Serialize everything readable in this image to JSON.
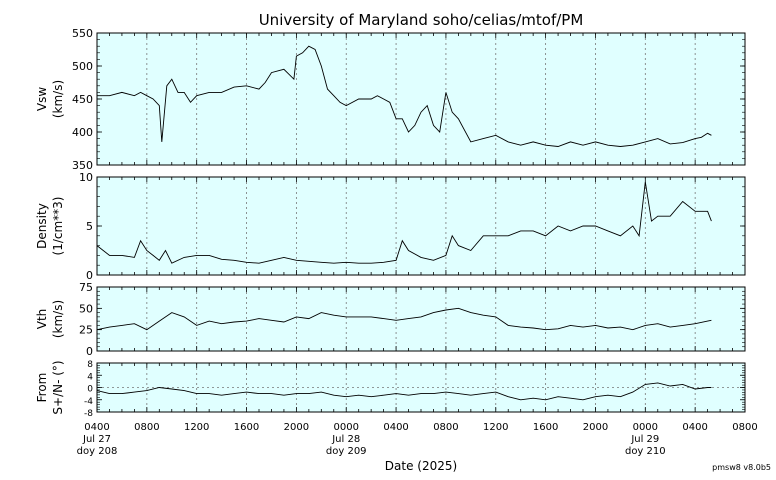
{
  "title": "University of Maryland  soho/celias/mtof/PM",
  "footer_label": "pmsw8 v8.0b5",
  "colors": {
    "panel_bg": "#e0ffff",
    "line": "#000000",
    "grid": "#777777"
  },
  "chart_data": {
    "type": "line",
    "xlabel": "Date (2025)",
    "x_ticks": [
      "0400",
      "0800",
      "1200",
      "1600",
      "2000",
      "0000",
      "0400",
      "0800",
      "1200",
      "1600",
      "2000",
      "0000",
      "0400",
      "0800"
    ],
    "x_ticks_hours": [
      4,
      8,
      12,
      16,
      20,
      24,
      28,
      32,
      36,
      40,
      44,
      48,
      52,
      56
    ],
    "x_range_hours": [
      4,
      56
    ],
    "day_labels": [
      {
        "hour": 4,
        "date": "Jul 27",
        "doy": "doy 208"
      },
      {
        "hour": 24,
        "date": "Jul 28",
        "doy": "doy 209"
      },
      {
        "hour": 48,
        "date": "Jul 29",
        "doy": "doy 210"
      }
    ],
    "panels": [
      {
        "id": "vsw",
        "ylabel": "Vsw",
        "yunit": "(km/s)",
        "ylim": [
          350,
          550
        ],
        "yticks": [
          350,
          400,
          450,
          500,
          550
        ],
        "grid": true,
        "series": [
          {
            "x": [
              4,
              5,
              6,
              7,
              7.5,
              8,
              8.5,
              9,
              9.2,
              9.6,
              10,
              10.5,
              11,
              11.5,
              12,
              13,
              14,
              15,
              16,
              17,
              17.5,
              18,
              19,
              19.8,
              20,
              20.5,
              21,
              21.5,
              22,
              22.5,
              23,
              23.5,
              24,
              25,
              26,
              26.5,
              27,
              27.5,
              28,
              28.5,
              29,
              29.5,
              30,
              30.5,
              31,
              31.5,
              32,
              32.5,
              33,
              34,
              35,
              36,
              37,
              38,
              39,
              40,
              41,
              42,
              43,
              44,
              45,
              46,
              47,
              48,
              49,
              50,
              51,
              52,
              52.5,
              53,
              53.3
            ],
            "y": [
              455,
              455,
              460,
              455,
              460,
              455,
              450,
              440,
              385,
              470,
              480,
              460,
              460,
              445,
              455,
              460,
              460,
              468,
              470,
              465,
              475,
              490,
              495,
              480,
              515,
              520,
              530,
              525,
              500,
              465,
              455,
              445,
              440,
              450,
              450,
              455,
              450,
              445,
              420,
              420,
              400,
              410,
              430,
              440,
              410,
              400,
              460,
              430,
              420,
              385,
              390,
              395,
              385,
              380,
              385,
              380,
              378,
              385,
              380,
              385,
              380,
              378,
              380,
              385,
              390,
              382,
              384,
              390,
              392,
              398,
              395
            ]
          }
        ]
      },
      {
        "id": "density",
        "ylabel": "Density",
        "yunit": "(1/cm**3)",
        "ylim": [
          0,
          10
        ],
        "yticks": [
          0,
          5,
          10
        ],
        "grid": true,
        "series": [
          {
            "x": [
              4,
              5,
              6,
              7,
              7.5,
              8,
              8.5,
              9,
              9.5,
              10,
              11,
              12,
              13,
              14,
              15,
              16,
              17,
              18,
              19,
              20,
              21,
              22,
              23,
              24,
              25,
              26,
              27,
              28,
              28.5,
              29,
              30,
              31,
              32,
              32.5,
              33,
              34,
              35,
              36,
              37,
              38,
              39,
              40,
              41,
              42,
              43,
              44,
              45,
              46,
              47,
              47.5,
              48,
              48.5,
              49,
              50,
              51,
              52,
              53,
              53.3
            ],
            "y": [
              3,
              2,
              2,
              1.8,
              3.5,
              2.5,
              2,
              1.5,
              2.5,
              1.2,
              1.8,
              2,
              2,
              1.6,
              1.5,
              1.3,
              1.2,
              1.5,
              1.8,
              1.5,
              1.4,
              1.3,
              1.2,
              1.3,
              1.2,
              1.2,
              1.3,
              1.5,
              3.5,
              2.5,
              1.8,
              1.5,
              2,
              4,
              3,
              2.5,
              4,
              4,
              4,
              4.5,
              4.5,
              4,
              5,
              4.5,
              5,
              5,
              4.5,
              4,
              5,
              4,
              9.5,
              5.5,
              6,
              6,
              7.5,
              6.5,
              6.5,
              5.5
            ]
          }
        ]
      },
      {
        "id": "vth",
        "ylabel": "Vth",
        "yunit": "(km/s)",
        "ylim": [
          0,
          75
        ],
        "yticks": [
          0,
          25,
          50,
          75
        ],
        "grid": true,
        "series": [
          {
            "x": [
              4,
              5,
              6,
              7,
              8,
              9,
              10,
              11,
              12,
              13,
              14,
              15,
              16,
              17,
              18,
              19,
              20,
              21,
              22,
              23,
              24,
              25,
              26,
              27,
              28,
              29,
              30,
              31,
              32,
              33,
              34,
              35,
              36,
              37,
              38,
              39,
              40,
              41,
              42,
              43,
              44,
              45,
              46,
              47,
              48,
              49,
              50,
              51,
              52,
              53,
              53.3
            ],
            "y": [
              25,
              28,
              30,
              32,
              25,
              35,
              45,
              40,
              30,
              35,
              32,
              34,
              35,
              38,
              36,
              34,
              40,
              38,
              45,
              42,
              40,
              40,
              40,
              38,
              36,
              38,
              40,
              45,
              48,
              50,
              45,
              42,
              40,
              30,
              28,
              27,
              25,
              26,
              30,
              28,
              30,
              27,
              28,
              25,
              30,
              32,
              28,
              30,
              32,
              35,
              36
            ]
          }
        ]
      },
      {
        "id": "from",
        "ylabel": "From",
        "yunit": "S+/N- (°)",
        "ylim": [
          -8,
          8
        ],
        "yticks": [
          -8,
          -4,
          0,
          4,
          8
        ],
        "grid": true,
        "zero_line": true,
        "series": [
          {
            "x": [
              4,
              5,
              6,
              7,
              8,
              9,
              10,
              11,
              12,
              13,
              14,
              15,
              16,
              17,
              18,
              19,
              20,
              21,
              22,
              23,
              24,
              25,
              26,
              27,
              28,
              29,
              30,
              31,
              32,
              33,
              34,
              35,
              36,
              37,
              38,
              39,
              40,
              41,
              42,
              43,
              44,
              45,
              46,
              47,
              48,
              49,
              50,
              51,
              52,
              53,
              53.3
            ],
            "y": [
              -1,
              -2,
              -2,
              -1.5,
              -1,
              0,
              -0.5,
              -1,
              -2,
              -2,
              -2.5,
              -2,
              -1.5,
              -2,
              -2,
              -2.5,
              -2,
              -2,
              -1.5,
              -2.5,
              -3,
              -2.5,
              -3,
              -2.5,
              -2,
              -2.5,
              -2,
              -2,
              -1.5,
              -2,
              -2.5,
              -2,
              -1.5,
              -3,
              -4,
              -3.5,
              -4,
              -3,
              -3.5,
              -4,
              -3,
              -2.5,
              -3,
              -1.5,
              1,
              1.5,
              0.5,
              1,
              -0.5,
              0,
              0
            ]
          }
        ]
      }
    ]
  }
}
